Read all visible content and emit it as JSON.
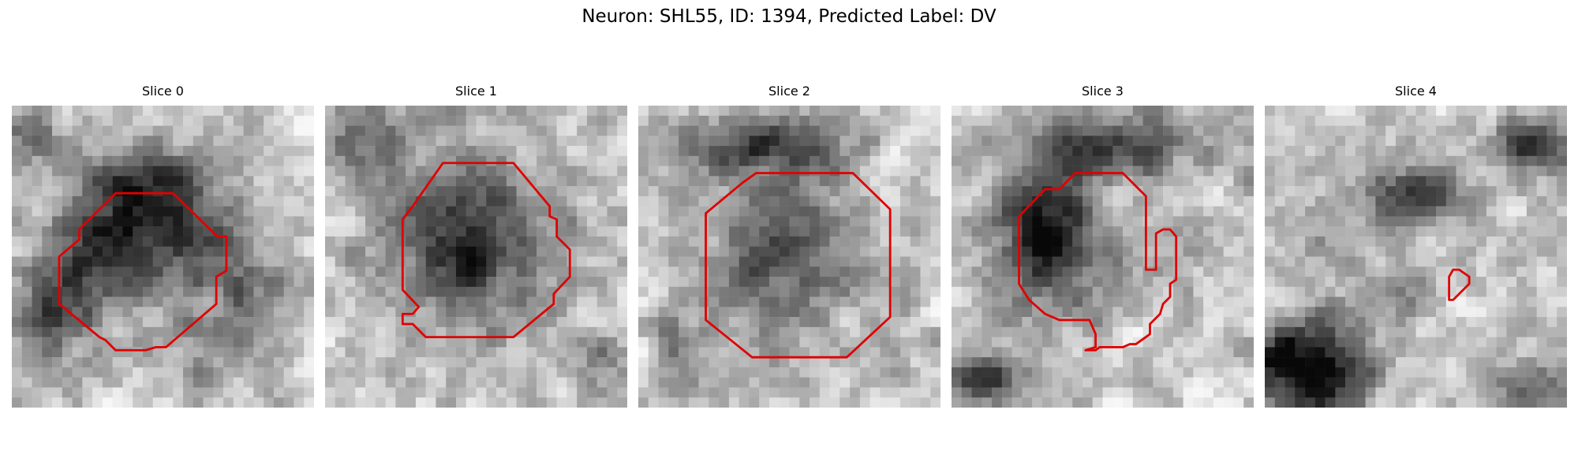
{
  "figure": {
    "title": "Neuron: SHL55, ID: 1394, Predicted Label: DV"
  },
  "contour_color": "#e00000",
  "panels": [
    {
      "title": "Slice 0"
    },
    {
      "title": "Slice 1"
    },
    {
      "title": "Slice 2"
    },
    {
      "title": "Slice 3"
    },
    {
      "title": "Slice 4"
    }
  ]
}
